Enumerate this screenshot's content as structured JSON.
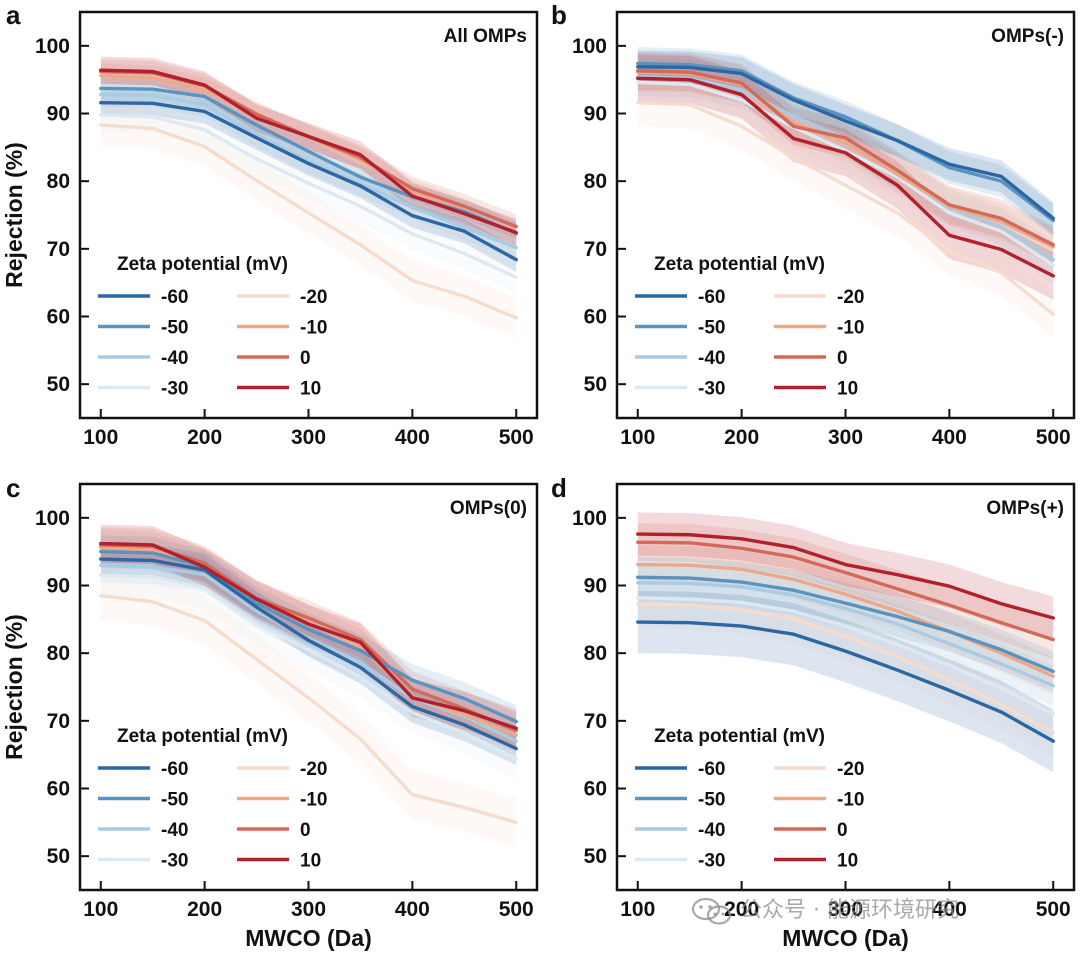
{
  "figure": {
    "watermark": "公众号 · 能源环境研究",
    "colors": {
      "-60": "#2c66a3",
      "-50": "#5a93bf",
      "-40": "#a9cbe3",
      "-30": "#dde9f2",
      "-20": "#f6dccd",
      "-10": "#eda987",
      "0": "#d36a59",
      "10": "#b21f2d"
    }
  },
  "chart_data": [
    {
      "type": "line",
      "panel": "a",
      "title": "All OMPs",
      "xlabel": "",
      "ylabel": "Rejection (%)",
      "xlim": [
        80,
        520
      ],
      "ylim": [
        45,
        105
      ],
      "xticks": [
        100,
        200,
        300,
        400,
        500
      ],
      "yticks": [
        50,
        60,
        70,
        80,
        90,
        100
      ],
      "legend": {
        "title": "Zeta potential (mV)",
        "placement": "bottom-left",
        "columns": 2
      },
      "x": [
        100,
        150,
        200,
        250,
        300,
        350,
        400,
        450,
        500
      ],
      "series": [
        {
          "name": "-60",
          "values": [
            91.6,
            91.5,
            90.3,
            86.4,
            82.6,
            79.3,
            74.9,
            72.6,
            68.4
          ],
          "band": 1.8
        },
        {
          "name": "-50",
          "values": [
            93.7,
            93.6,
            92.5,
            88.3,
            84.4,
            80.6,
            77.7,
            75.5,
            72.3
          ],
          "band": 1.8
        },
        {
          "name": "-40",
          "values": [
            92.8,
            92.7,
            91.3,
            86.9,
            82.9,
            79.6,
            76.2,
            73.1,
            70.2
          ],
          "band": 1.8
        },
        {
          "name": "-30",
          "values": [
            89.8,
            89.5,
            87.6,
            83.3,
            79.7,
            76.3,
            72.2,
            69.3,
            65.8
          ],
          "band": 2.4
        },
        {
          "name": "-20",
          "values": [
            88.3,
            87.8,
            85.1,
            80.1,
            75.3,
            70.6,
            65.3,
            63.0,
            59.8
          ],
          "band": 3.0
        },
        {
          "name": "-10",
          "values": [
            95.6,
            95.3,
            93.5,
            89.8,
            86.5,
            83.2,
            78.5,
            75.7,
            72.1
          ],
          "band": 1.8
        },
        {
          "name": "0",
          "values": [
            96.2,
            96.0,
            94.1,
            89.9,
            86.6,
            83.5,
            78.9,
            76.3,
            73.3
          ],
          "band": 1.8
        },
        {
          "name": "10",
          "values": [
            96.4,
            96.2,
            94.2,
            89.3,
            86.6,
            83.9,
            77.8,
            75.2,
            72.4
          ],
          "band": 2.0
        }
      ]
    },
    {
      "type": "line",
      "panel": "b",
      "title": "OMPs(-)",
      "xlabel": "",
      "ylabel": "",
      "xlim": [
        80,
        520
      ],
      "ylim": [
        45,
        105
      ],
      "xticks": [
        100,
        200,
        300,
        400,
        500
      ],
      "yticks": [
        50,
        60,
        70,
        80,
        90,
        100
      ],
      "legend": {
        "title": "Zeta potential (mV)",
        "placement": "bottom-left",
        "columns": 2
      },
      "x": [
        100,
        150,
        200,
        250,
        300,
        350,
        400,
        450,
        500
      ],
      "series": [
        {
          "name": "-60",
          "values": [
            96.9,
            96.8,
            95.9,
            92.0,
            88.9,
            86.0,
            82.5,
            80.7,
            74.5
          ],
          "band": 2.4
        },
        {
          "name": "-50",
          "values": [
            97.4,
            97.2,
            96.3,
            92.3,
            89.5,
            86.0,
            82.0,
            80.0,
            74.2
          ],
          "band": 2.4
        },
        {
          "name": "-40",
          "values": [
            95.4,
            95.2,
            93.5,
            89.6,
            86.3,
            81.4,
            76.0,
            73.3,
            68.4
          ],
          "band": 2.8
        },
        {
          "name": "-30",
          "values": [
            94.6,
            94.3,
            92.0,
            88.0,
            84.5,
            80.6,
            75.3,
            72.6,
            67.6
          ],
          "band": 3.0
        },
        {
          "name": "-20",
          "values": [
            91.6,
            91.3,
            88.1,
            83.5,
            79.4,
            75.3,
            69.7,
            66.5,
            60.3
          ],
          "band": 3.5
        },
        {
          "name": "-10",
          "values": [
            96.1,
            95.9,
            94.3,
            88.6,
            85.7,
            81.0,
            76.3,
            74.0,
            70.3
          ],
          "band": 2.8
        },
        {
          "name": "0",
          "values": [
            96.3,
            96.1,
            94.5,
            88.1,
            86.4,
            81.6,
            76.5,
            74.5,
            70.6
          ],
          "band": 2.8
        },
        {
          "name": "10",
          "values": [
            95.2,
            95.0,
            92.8,
            86.3,
            84.2,
            79.4,
            72.0,
            69.9,
            66.0
          ],
          "band": 3.5
        }
      ]
    },
    {
      "type": "line",
      "panel": "c",
      "title": "OMPs(0)",
      "xlabel": "MWCO (Da)",
      "ylabel": "Rejection (%)",
      "xlim": [
        80,
        520
      ],
      "ylim": [
        45,
        105
      ],
      "xticks": [
        100,
        200,
        300,
        400,
        500
      ],
      "yticks": [
        50,
        60,
        70,
        80,
        90,
        100
      ],
      "legend": {
        "title": "Zeta potential (mV)",
        "placement": "bottom-left",
        "columns": 2
      },
      "x": [
        100,
        150,
        200,
        250,
        300,
        350,
        400,
        450,
        500
      ],
      "series": [
        {
          "name": "-60",
          "values": [
            93.9,
            93.7,
            92.3,
            86.8,
            81.9,
            77.9,
            72.1,
            69.4,
            65.9
          ],
          "band": 2.4
        },
        {
          "name": "-50",
          "values": [
            95.0,
            94.8,
            92.8,
            87.4,
            83.5,
            80.4,
            76.0,
            73.3,
            69.9
          ],
          "band": 2.4
        },
        {
          "name": "-40",
          "values": [
            93.0,
            92.8,
            91.6,
            86.2,
            82.2,
            78.6,
            73.4,
            70.7,
            67.0
          ],
          "band": 2.6
        },
        {
          "name": "-30",
          "values": [
            91.5,
            91.3,
            89.6,
            84.3,
            80.5,
            76.4,
            71.2,
            68.2,
            64.4
          ],
          "band": 3.0
        },
        {
          "name": "-20",
          "values": [
            88.5,
            87.6,
            84.8,
            79.1,
            73.4,
            67.3,
            59.1,
            57.2,
            55.0
          ],
          "band": 3.6
        },
        {
          "name": "-10",
          "values": [
            95.6,
            95.3,
            92.9,
            87.9,
            84.6,
            81.0,
            73.6,
            70.9,
            67.9
          ],
          "band": 2.6
        },
        {
          "name": "0",
          "values": [
            96.0,
            95.8,
            93.3,
            88.1,
            85.2,
            82.0,
            74.7,
            71.8,
            68.6
          ],
          "band": 2.6
        },
        {
          "name": "10",
          "values": [
            96.2,
            96.0,
            92.7,
            88.0,
            84.3,
            81.6,
            73.4,
            71.5,
            68.9
          ],
          "band": 2.8
        }
      ]
    },
    {
      "type": "line",
      "panel": "d",
      "title": "OMPs(+)",
      "xlabel": "MWCO (Da)",
      "ylabel": "",
      "xlim": [
        80,
        520
      ],
      "ylim": [
        45,
        105
      ],
      "xticks": [
        100,
        200,
        300,
        400,
        500
      ],
      "yticks": [
        50,
        60,
        70,
        80,
        90,
        100
      ],
      "legend": {
        "title": "Zeta potential (mV)",
        "placement": "bottom-left",
        "columns": 2
      },
      "x": [
        100,
        150,
        200,
        250,
        300,
        350,
        400,
        450,
        500
      ],
      "series": [
        {
          "name": "-60",
          "values": [
            84.6,
            84.5,
            84.0,
            82.8,
            80.3,
            77.5,
            74.5,
            71.3,
            67.0
          ],
          "band": 4.6
        },
        {
          "name": "-50",
          "values": [
            91.2,
            91.1,
            90.5,
            89.3,
            87.4,
            85.4,
            83.2,
            80.5,
            77.3
          ],
          "band": 3.0
        },
        {
          "name": "-40",
          "values": [
            90.4,
            90.3,
            89.8,
            88.6,
            86.6,
            84.3,
            81.4,
            78.4,
            75.2
          ],
          "band": 3.0
        },
        {
          "name": "-30",
          "values": [
            88.2,
            88.0,
            87.5,
            86.2,
            84.0,
            81.3,
            78.2,
            74.8,
            71.0
          ],
          "band": 3.4
        },
        {
          "name": "-20",
          "values": [
            87.3,
            87.1,
            86.4,
            85.0,
            82.5,
            79.5,
            76.0,
            72.4,
            68.3
          ],
          "band": 3.6
        },
        {
          "name": "-10",
          "values": [
            93.1,
            93.0,
            92.4,
            90.9,
            88.7,
            86.2,
            83.2,
            80.0,
            76.6
          ],
          "band": 2.8
        },
        {
          "name": "0",
          "values": [
            96.4,
            96.3,
            95.5,
            94.2,
            91.9,
            89.5,
            87.1,
            84.5,
            82.0
          ],
          "band": 2.8
        },
        {
          "name": "10",
          "values": [
            97.6,
            97.5,
            96.9,
            95.6,
            93.1,
            91.6,
            89.9,
            87.3,
            85.2
          ],
          "band": 3.2
        }
      ]
    }
  ]
}
